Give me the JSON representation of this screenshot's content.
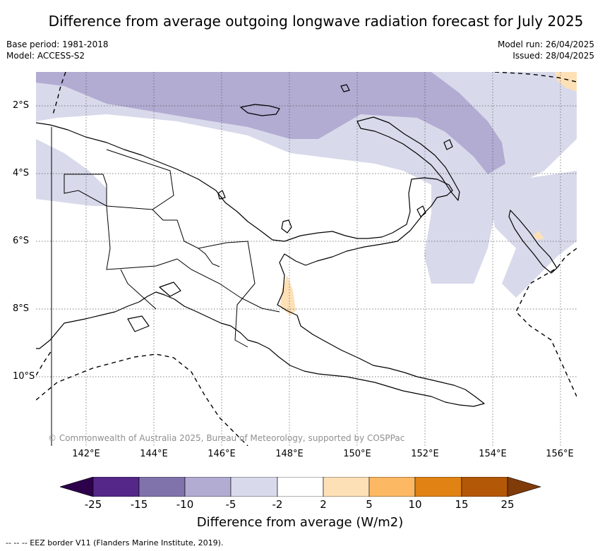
{
  "title": "Difference from average outgoing longwave radiation forecast for July 2025",
  "base_period": "Base period: 1981-2018",
  "model": "Model: ACCESS-S2",
  "model_run": "Model run: 26/04/2025",
  "issued": "Issued: 28/04/2025",
  "y_axis_ticks": [
    "2°S",
    "4°S",
    "6°S",
    "8°S",
    "10°S"
  ],
  "x_axis_ticks": [
    "142°E",
    "144°E",
    "146°E",
    "148°E",
    "150°E",
    "152°E",
    "154°E",
    "156°E"
  ],
  "copyright": "© Commonwealth of Australia 2025, Bureau of Meteorology, supported by COSPPac",
  "colorbar": {
    "title": "Difference from average (W/m2)",
    "ticks": [
      "-25",
      "-15",
      "-10",
      "-5",
      "-2",
      "2",
      "5",
      "10",
      "15",
      "25"
    ],
    "colors": {
      "lt_-25": "#2d004b",
      "-25_-15": "#542788",
      "-15_-10": "#8073ac",
      "-10_-5": "#b2abd2",
      "-5_-2": "#d8daeb",
      "-2_2": "#ffffff",
      "2_5": "#fee0b6",
      "5_10": "#fdb863",
      "10_15": "#e08214",
      "15_25": "#b35806",
      "gt_25": "#7f3b08"
    }
  },
  "footer": "--  --  -- EEZ border V11 (Flanders Marine Institute, 2019)."
}
